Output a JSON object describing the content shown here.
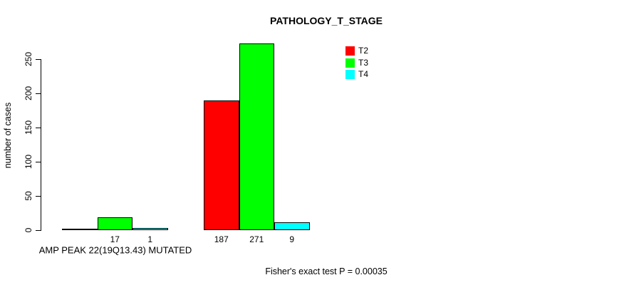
{
  "title": "PATHOLOGY_T_STAGE",
  "y_axis": {
    "label": "number of cases"
  },
  "x_axis": {
    "label": "AMP PEAK 22(19Q13.43) MUTATED"
  },
  "footer": "Fisher's exact test P = 0.00035",
  "colors": {
    "t2": "#ff0000",
    "t3": "#00ff00",
    "t4": "#00ffff",
    "axis": "#000000",
    "background": "#ffffff"
  },
  "chart_data": {
    "type": "bar",
    "title": "PATHOLOGY_T_STAGE",
    "ylabel": "number of cases",
    "xlabel": "AMP PEAK 22(19Q13.43) MUTATED",
    "annotation": "Fisher's exact test P = 0.00035",
    "categories": [
      "",
      ""
    ],
    "series": [
      {
        "name": "T2",
        "color": "#ff0000",
        "values": [
          0,
          187
        ]
      },
      {
        "name": "T3",
        "color": "#00ff00",
        "values": [
          17,
          271
        ]
      },
      {
        "name": "T4",
        "color": "#00ffff",
        "values": [
          1,
          9
        ]
      }
    ],
    "bar_value_labels": [
      [
        "",
        "17",
        "1"
      ],
      [
        "187",
        "271",
        "9"
      ]
    ],
    "yticks": [
      0,
      50,
      100,
      150,
      200,
      250
    ],
    "ylim": [
      0,
      250
    ],
    "grid": false,
    "legend_position": "top-right",
    "legend_entries": [
      "T2",
      "T3",
      "T4"
    ]
  }
}
